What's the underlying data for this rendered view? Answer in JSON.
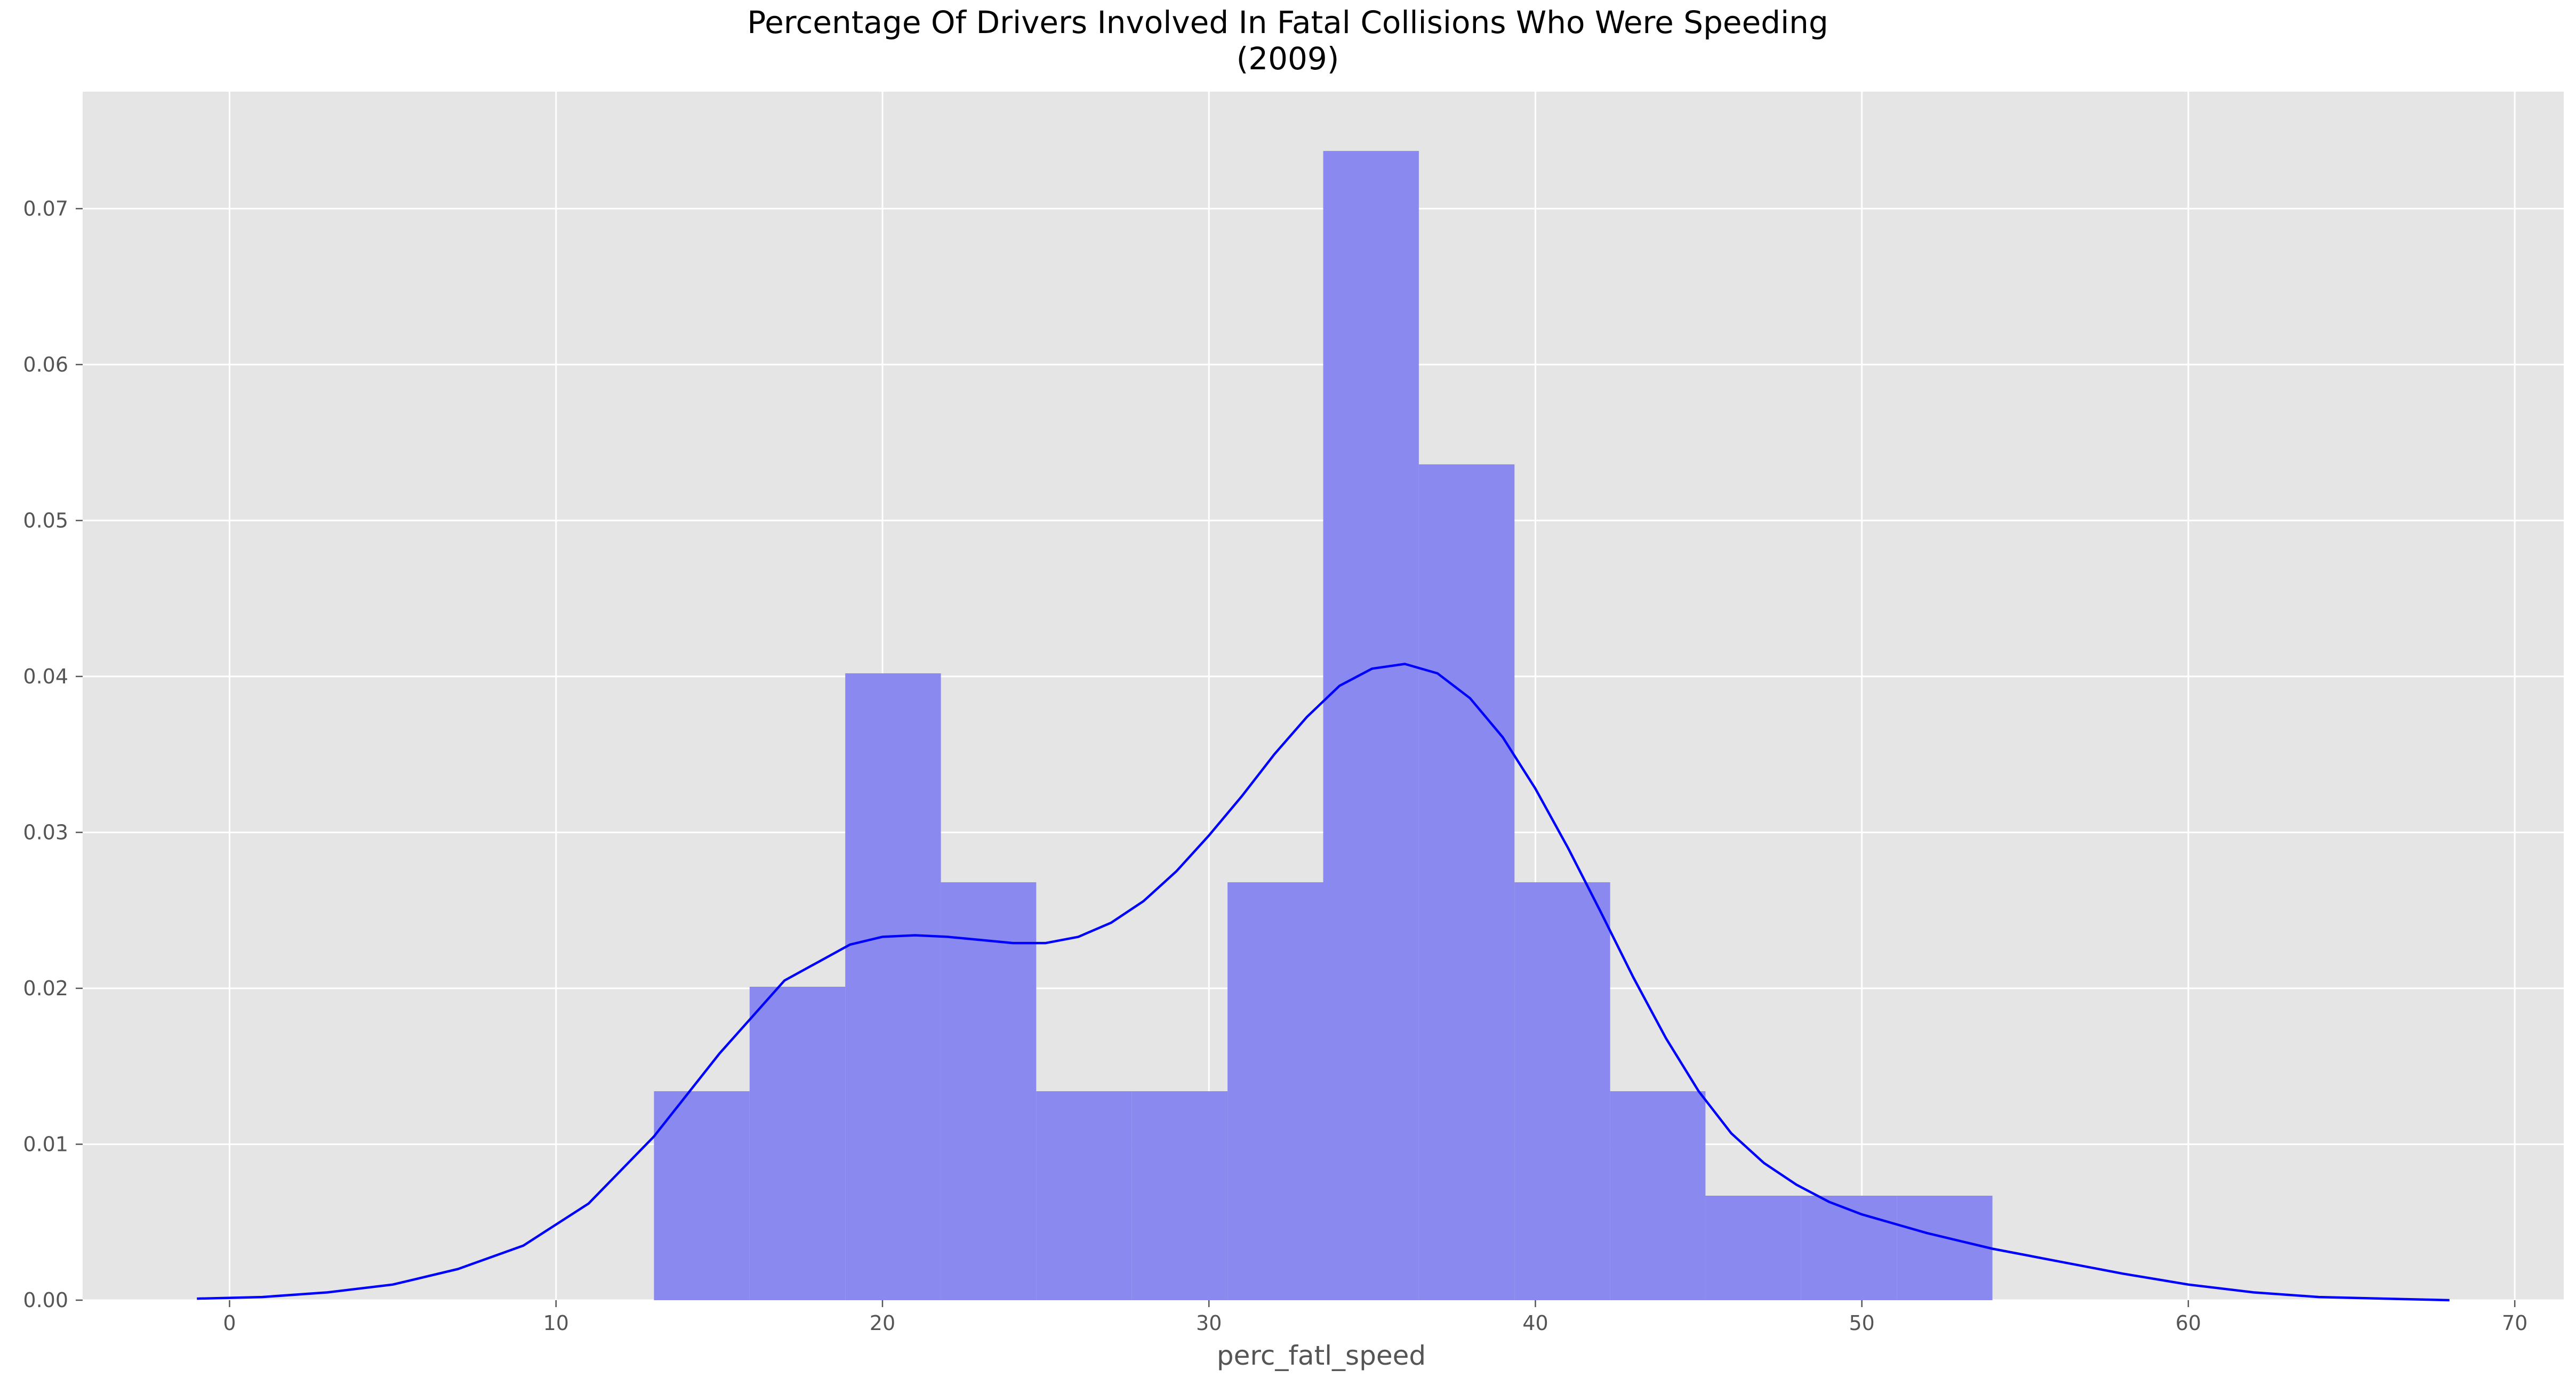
{
  "chart_data": {
    "type": "bar",
    "subtype": "histogram-with-kde",
    "title": "Percentage Of Drivers Involved In Fatal Collisions Who Were Speeding",
    "subtitle": "(2009)",
    "xlabel": "perc_fatl_speed",
    "ylabel": "",
    "xlim": [
      -4.5,
      71.5
    ],
    "ylim": [
      0,
      0.0775
    ],
    "xticks": [
      0,
      10,
      20,
      30,
      40,
      50,
      60,
      70
    ],
    "yticks": [
      0.0,
      0.01,
      0.02,
      0.03,
      0.04,
      0.05,
      0.06,
      0.07
    ],
    "ytick_labels": [
      "0.00",
      "0.01",
      "0.02",
      "0.03",
      "0.04",
      "0.05",
      "0.06",
      "0.07"
    ],
    "grid": true,
    "colors": {
      "background": "#e5e5e5",
      "grid": "#ffffff",
      "bars": "#8989f0",
      "kde": "#0000ff",
      "text": "#555555"
    },
    "histogram": {
      "bin_edges": [
        13.0,
        15.93,
        18.86,
        21.79,
        24.71,
        27.64,
        30.57,
        33.5,
        36.43,
        39.36,
        42.29,
        45.21,
        48.14,
        51.07,
        54.0
      ],
      "density": [
        0.0134,
        0.0201,
        0.0402,
        0.0268,
        0.0134,
        0.0134,
        0.0268,
        0.0737,
        0.0536,
        0.0268,
        0.0134,
        0.0067,
        0.0067,
        0.0067
      ]
    },
    "kde": {
      "x": [
        -1,
        1,
        3,
        5,
        7,
        9,
        11,
        13,
        15,
        17,
        19,
        20,
        21,
        22,
        23,
        24,
        25,
        26,
        27,
        28,
        29,
        30,
        31,
        32,
        33,
        34,
        35,
        36,
        37,
        38,
        39,
        40,
        41,
        42,
        43,
        44,
        45,
        46,
        47,
        48,
        49,
        50,
        52,
        54,
        56,
        58,
        60,
        62,
        64,
        66,
        68
      ],
      "y": [
        0.0001,
        0.0002,
        0.0005,
        0.001,
        0.002,
        0.0035,
        0.0062,
        0.0105,
        0.0158,
        0.0205,
        0.0228,
        0.0233,
        0.0234,
        0.0233,
        0.0231,
        0.0229,
        0.0229,
        0.0233,
        0.0242,
        0.0256,
        0.0275,
        0.0298,
        0.0323,
        0.035,
        0.0374,
        0.0394,
        0.0405,
        0.0408,
        0.0402,
        0.0386,
        0.0361,
        0.0328,
        0.029,
        0.0249,
        0.0207,
        0.0168,
        0.0134,
        0.0107,
        0.0088,
        0.0074,
        0.0063,
        0.0055,
        0.0043,
        0.0033,
        0.0025,
        0.0017,
        0.001,
        0.0005,
        0.0002,
        0.0001,
        0.0
      ]
    }
  }
}
